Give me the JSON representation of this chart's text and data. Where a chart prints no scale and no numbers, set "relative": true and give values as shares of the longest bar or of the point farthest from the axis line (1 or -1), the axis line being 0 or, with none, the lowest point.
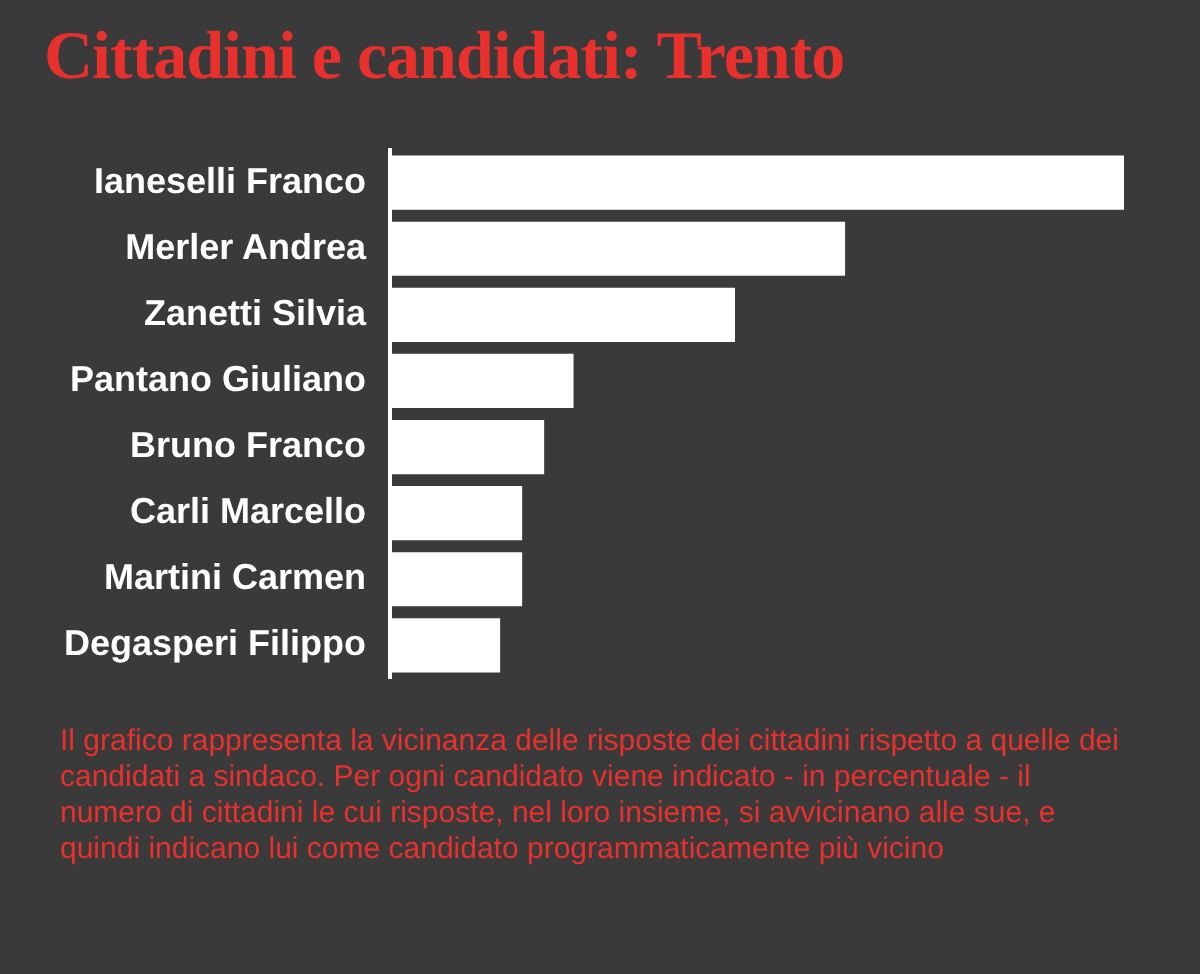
{
  "chart_data": {
    "type": "bar",
    "orientation": "horizontal",
    "relative": true,
    "title": "Cittadini e candidati: Trento",
    "categories": [
      "Ianeselli Franco",
      "Merler Andrea",
      "Zanetti Silvia",
      "Pantano Giuliano",
      "Bruno Franco",
      "Carli Marcello",
      "Martini Carmen",
      "Degasperi Filippo"
    ],
    "values": [
      1,
      0.62,
      0.47,
      0.25,
      0.21,
      0.18,
      0.18,
      0.15
    ],
    "color": "#ffffff",
    "annotations": [
      "Il grafico rappresenta la vicinanza delle risposte dei cittadini rispetto a quelle dei candidati a sindaco. Per ogni candidato viene indicato - in percentuale - il numero di cittadini le cui risposte, nel loro insieme, si avvicinano alle sue, e quindi indicano lui come candidato programmaticamente più vicino"
    ]
  }
}
